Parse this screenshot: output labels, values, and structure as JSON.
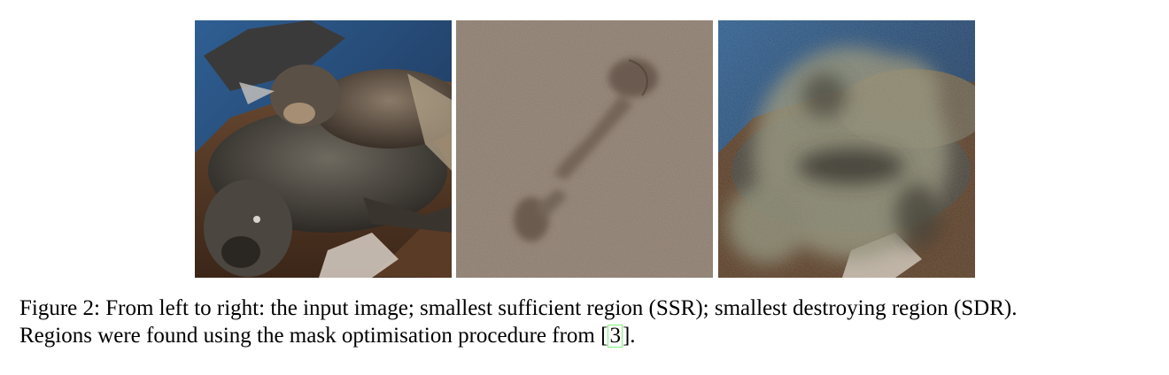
{
  "figure": {
    "panels": [
      {
        "name": "input-image",
        "icon": "sea-lion-photo-icon"
      },
      {
        "name": "ssr-image",
        "icon": "ssr-mask-icon"
      },
      {
        "name": "sdr-image",
        "icon": "sdr-mask-icon"
      }
    ],
    "caption": {
      "line1": "Figure 2: From left to right: the input image; smallest sufficient region (SSR); smallest destroying region (SDR).",
      "line2_before": "Regions were found using the mask optimisation procedure from [",
      "citation": "3",
      "line2_after": "]."
    },
    "colors": {
      "citation_box": "#7cf27c",
      "ssr_background": "#8a7a6d"
    }
  }
}
